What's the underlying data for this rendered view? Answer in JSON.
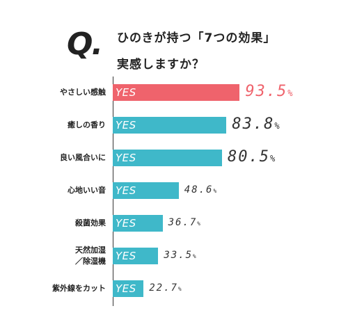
{
  "question": {
    "mark": "Q.",
    "line1": "ひのきが持つ「7つの効果」",
    "line2": "実感しますか？"
  },
  "colors": {
    "highlight": "#ef636c",
    "bar": "#3fb8c9",
    "highlight_text": "#ef636c",
    "value_text": "#333333"
  },
  "chart_data": {
    "type": "bar",
    "orientation": "horizontal",
    "bar_label": "YES",
    "unit": "%",
    "xlim": [
      0,
      100
    ],
    "categories": [
      "やさしい感触",
      "癒しの香り",
      "良い風合いに",
      "心地いい音",
      "殺菌効果",
      "天然加湿\n／除湿機",
      "紫外線をカット"
    ],
    "values": [
      93.5,
      83.8,
      80.5,
      48.6,
      36.7,
      33.5,
      22.7
    ],
    "value_labels": [
      "93.5",
      "83.8",
      "80.5",
      "48.6",
      "36.7",
      "33.5",
      "22.7"
    ],
    "highlight_index": 0
  }
}
